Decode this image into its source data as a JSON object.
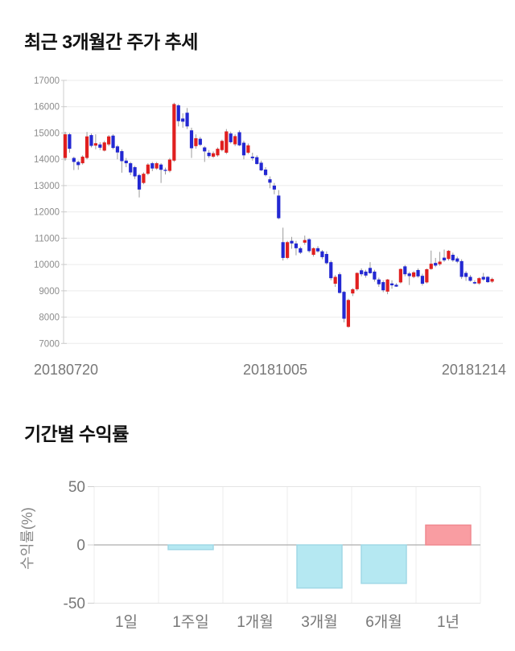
{
  "sections": {
    "price_trend_title": "최근 3개월간 주가 추세",
    "period_return_title": "기간별 수익률"
  },
  "chart_data": [
    {
      "type": "candlestick",
      "title": "최근 3개월간 주가 추세",
      "ylim": [
        7000,
        17000
      ],
      "yticks": [
        17000,
        16000,
        15000,
        14000,
        13000,
        12000,
        11000,
        10000,
        9000,
        8000,
        7000
      ],
      "xticks": [
        "20180720",
        "20181005",
        "20181214"
      ],
      "grid": "horizontal",
      "colors": {
        "up": "#e01f1f",
        "down": "#2328d2",
        "wick": "#909090",
        "grid": "#ebebeb",
        "axis": "#cccccc",
        "tick_label": "#8c8c8c",
        "date_label": "#777777"
      },
      "candles_ohlc": [
        [
          14050,
          15050,
          13950,
          14950
        ],
        [
          14950,
          15000,
          14250,
          14400
        ],
        [
          14050,
          14100,
          13590,
          13900
        ],
        [
          13900,
          13950,
          13600,
          13780
        ],
        [
          13850,
          14150,
          13800,
          14100
        ],
        [
          14050,
          15040,
          14000,
          14870
        ],
        [
          14920,
          14980,
          14450,
          14510
        ],
        [
          14520,
          14950,
          14380,
          14610
        ],
        [
          14565,
          14650,
          14350,
          14440
        ],
        [
          14330,
          14700,
          14300,
          14640
        ],
        [
          14565,
          14920,
          14500,
          14870
        ],
        [
          14900,
          14950,
          14380,
          14430
        ],
        [
          14490,
          14550,
          14000,
          14260
        ],
        [
          14310,
          14380,
          13490,
          13930
        ],
        [
          13950,
          14050,
          13700,
          13850
        ],
        [
          13850,
          13900,
          13400,
          13500
        ],
        [
          13700,
          13750,
          13250,
          13350
        ],
        [
          13400,
          13450,
          12550,
          12850
        ],
        [
          13100,
          13500,
          13050,
          13450
        ],
        [
          13450,
          13850,
          13400,
          13800
        ],
        [
          13850,
          13900,
          13550,
          13650
        ],
        [
          13650,
          13900,
          13600,
          13850
        ],
        [
          13800,
          13850,
          13100,
          13600
        ],
        [
          13600,
          13680,
          13420,
          13560
        ],
        [
          13560,
          14050,
          13500,
          13990
        ],
        [
          13950,
          16150,
          13900,
          16100
        ],
        [
          16050,
          16100,
          15250,
          15450
        ],
        [
          15550,
          15750,
          15200,
          15430
        ],
        [
          15770,
          15950,
          15150,
          15250
        ],
        [
          15100,
          15200,
          14050,
          14420
        ],
        [
          14500,
          14950,
          14400,
          14800
        ],
        [
          14780,
          14850,
          14500,
          14550
        ],
        [
          14450,
          14500,
          13900,
          14300
        ],
        [
          14250,
          14350,
          14050,
          14120
        ],
        [
          14100,
          14300,
          14050,
          14230
        ],
        [
          14150,
          14450,
          14100,
          14400
        ],
        [
          14350,
          14750,
          14300,
          14700
        ],
        [
          14250,
          15150,
          14200,
          15060
        ],
        [
          14980,
          15050,
          14600,
          14650
        ],
        [
          14570,
          14950,
          14500,
          14880
        ],
        [
          15030,
          15100,
          14500,
          14530
        ],
        [
          14630,
          14700,
          14000,
          14150
        ],
        [
          14250,
          14600,
          14200,
          14530
        ],
        [
          14100,
          14250,
          13950,
          14040
        ],
        [
          14080,
          14150,
          13800,
          13820
        ],
        [
          13870,
          13950,
          13550,
          13580
        ],
        [
          13610,
          13700,
          13350,
          13400
        ],
        [
          13240,
          13350,
          12900,
          13110
        ],
        [
          13000,
          13100,
          12670,
          12850
        ],
        [
          12620,
          12830,
          11720,
          11760
        ],
        [
          10850,
          11400,
          10150,
          10250
        ],
        [
          10250,
          10900,
          10200,
          10850
        ],
        [
          10900,
          11050,
          10600,
          10800
        ],
        [
          10800,
          10900,
          10350,
          10620
        ],
        [
          10620,
          10680,
          10400,
          10450
        ],
        [
          10830,
          11100,
          10750,
          10930
        ],
        [
          10960,
          11000,
          10450,
          10510
        ],
        [
          10370,
          10650,
          10300,
          10620
        ],
        [
          10620,
          10700,
          10450,
          10500
        ],
        [
          10500,
          10550,
          10200,
          10280
        ],
        [
          10400,
          10500,
          10000,
          10050
        ],
        [
          10090,
          10150,
          9400,
          9480
        ],
        [
          9270,
          9600,
          9150,
          9530
        ],
        [
          9630,
          9700,
          8900,
          8920
        ],
        [
          8960,
          9000,
          7800,
          7940
        ],
        [
          7630,
          8700,
          7600,
          8650
        ],
        [
          8900,
          9100,
          8800,
          9060
        ],
        [
          9060,
          9700,
          9000,
          9680
        ],
        [
          9780,
          9850,
          9550,
          9630
        ],
        [
          9730,
          9800,
          9500,
          9580
        ],
        [
          9870,
          10090,
          9650,
          9670
        ],
        [
          9730,
          9800,
          9350,
          9430
        ],
        [
          9430,
          9500,
          9150,
          9250
        ],
        [
          9330,
          9400,
          8950,
          9020
        ],
        [
          8970,
          9450,
          8870,
          9430
        ],
        [
          9280,
          9400,
          9080,
          9210
        ],
        [
          9230,
          9290,
          9150,
          9160
        ],
        [
          9320,
          9850,
          9280,
          9830
        ],
        [
          9930,
          9980,
          9550,
          9630
        ],
        [
          9660,
          9720,
          9220,
          9560
        ],
        [
          9530,
          9750,
          9480,
          9700
        ],
        [
          9790,
          9850,
          9500,
          9550
        ],
        [
          9570,
          9650,
          9200,
          9270
        ],
        [
          9320,
          9850,
          9280,
          9820
        ],
        [
          9830,
          10530,
          9800,
          10030
        ],
        [
          10060,
          10250,
          9900,
          9960
        ],
        [
          10010,
          10480,
          9950,
          10110
        ],
        [
          10260,
          10570,
          10100,
          10160
        ],
        [
          10210,
          10550,
          10150,
          10520
        ],
        [
          10370,
          10450,
          10100,
          10160
        ],
        [
          10230,
          10300,
          10050,
          10110
        ],
        [
          10130,
          10200,
          9450,
          9530
        ],
        [
          9680,
          9750,
          9380,
          9530
        ],
        [
          9530,
          9600,
          9350,
          9380
        ],
        [
          9330,
          9400,
          9250,
          9280
        ],
        [
          9280,
          9520,
          9230,
          9480
        ],
        [
          9530,
          9680,
          9380,
          9430
        ],
        [
          9530,
          9560,
          9300,
          9330
        ],
        [
          9350,
          9500,
          9300,
          9450
        ]
      ]
    },
    {
      "type": "bar",
      "title": "기간별 수익률",
      "categories": [
        "1일",
        "1주일",
        "1개월",
        "3개월",
        "6개월",
        "1년"
      ],
      "values": [
        0,
        -4,
        0,
        -37,
        -33,
        17
      ],
      "ylabel": "수익률(%)",
      "yticks": [
        50,
        0,
        -50
      ],
      "ylim": [
        -50,
        50
      ],
      "grid": "both",
      "legend": "none",
      "colors": {
        "positive": "#f99da2",
        "positive_border": "#f0898f",
        "negative": "#b5e8f2",
        "negative_border": "#a0d8e6",
        "grid": "#e4e4e4",
        "vgrid": "#ececec",
        "zero_line": "#9a9a9a",
        "tick_label": "#777777",
        "axis_label": "#888888",
        "tick": "#cfcfcf"
      }
    }
  ]
}
